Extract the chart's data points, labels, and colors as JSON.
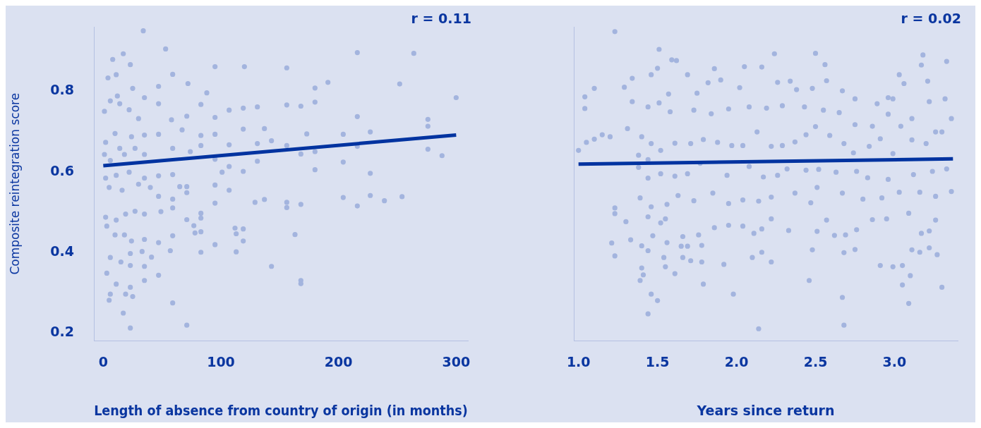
{
  "chart_data": [
    {
      "type": "scatter",
      "xlabel": "Length of absence from country of origin (in months)",
      "ylabel": "Composite reintegration score",
      "annotations": [
        "r = 0.11"
      ],
      "xlim": [
        -8,
        310
      ],
      "xticks": [
        0,
        100,
        200,
        300
      ],
      "ylim": [
        0.18,
        0.96
      ],
      "yticks": [
        0.2,
        0.4,
        0.6,
        0.8
      ],
      "series": [
        {
          "marker": "circle",
          "color": "#a3b4de",
          "x": [
            34,
            53,
            17,
            8,
            23,
            4,
            11,
            95,
            120,
            156,
            216,
            264,
            252,
            191,
            180,
            300,
            88,
            72,
            59,
            47,
            25,
            12,
            1,
            6,
            14,
            22,
            30,
            35,
            47,
            58,
            71,
            83,
            95,
            107,
            119,
            131,
            137,
            156,
            168,
            180,
            216,
            276,
            276,
            227,
            204,
            173,
            143,
            119,
            95,
            83,
            67,
            47,
            35,
            24,
            10,
            2,
            14,
            1,
            6,
            18,
            27,
            35,
            59,
            74,
            83,
            107,
            131,
            156,
            168,
            180,
            216,
            276,
            288,
            204,
            180,
            227,
            131,
            119,
            107,
            101,
            95,
            59,
            47,
            35,
            22,
            11,
            2,
            5,
            16,
            30,
            40,
            47,
            59,
            65,
            71,
            71,
            95,
            95,
            107,
            129,
            137,
            156,
            168,
            204,
            216,
            227,
            239,
            254,
            156,
            83,
            83,
            77,
            71,
            59,
            49,
            35,
            27,
            19,
            11,
            2,
            3,
            10,
            18,
            24,
            35,
            47,
            59,
            78,
            83,
            112,
            119,
            113,
            119,
            163,
            95,
            83,
            113,
            57,
            41,
            33,
            23,
            15,
            6,
            3,
            11,
            23,
            35,
            47,
            143,
            168,
            168,
            35,
            6,
            5,
            19,
            25,
            23,
            59,
            17,
            71,
            23
          ],
          "values": [
            0.95,
            0.905,
            0.893,
            0.879,
            0.866,
            0.833,
            0.841,
            0.861,
            0.861,
            0.858,
            0.896,
            0.894,
            0.818,
            0.822,
            0.808,
            0.784,
            0.796,
            0.819,
            0.842,
            0.812,
            0.807,
            0.788,
            0.75,
            0.776,
            0.769,
            0.754,
            0.732,
            0.784,
            0.769,
            0.729,
            0.738,
            0.767,
            0.735,
            0.753,
            0.758,
            0.761,
            0.707,
            0.766,
            0.763,
            0.773,
            0.737,
            0.73,
            0.713,
            0.699,
            0.693,
            0.694,
            0.677,
            0.706,
            0.693,
            0.69,
            0.704,
            0.693,
            0.691,
            0.687,
            0.695,
            0.673,
            0.658,
            0.643,
            0.628,
            0.643,
            0.658,
            0.643,
            0.658,
            0.65,
            0.665,
            0.667,
            0.67,
            0.665,
            0.644,
            0.65,
            0.663,
            0.656,
            0.64,
            0.624,
            0.605,
            0.596,
            0.626,
            0.601,
            0.613,
            0.599,
            0.631,
            0.593,
            0.59,
            0.584,
            0.599,
            0.591,
            0.584,
            0.561,
            0.554,
            0.569,
            0.561,
            0.539,
            0.532,
            0.563,
            0.563,
            0.548,
            0.567,
            0.522,
            0.554,
            0.524,
            0.531,
            0.524,
            0.519,
            0.536,
            0.515,
            0.541,
            0.528,
            0.538,
            0.511,
            0.497,
            0.485,
            0.466,
            0.481,
            0.51,
            0.501,
            0.495,
            0.502,
            0.495,
            0.48,
            0.487,
            0.465,
            0.443,
            0.443,
            0.428,
            0.432,
            0.424,
            0.441,
            0.448,
            0.451,
            0.46,
            0.458,
            0.446,
            0.428,
            0.444,
            0.419,
            0.4,
            0.401,
            0.404,
            0.388,
            0.402,
            0.397,
            0.376,
            0.387,
            0.348,
            0.321,
            0.367,
            0.365,
            0.343,
            0.365,
            0.33,
            0.322,
            0.33,
            0.296,
            0.281,
            0.296,
            0.29,
            0.313,
            0.274,
            0.249,
            0.219,
            0.212
          ]
        },
        {
          "type": "line",
          "color": "#0033a0",
          "x": [
            0,
            300
          ],
          "values": [
            0.615,
            0.691
          ]
        }
      ]
    },
    {
      "type": "scatter",
      "xlabel": "Years since return",
      "annotations": [
        "r = 0.02"
      ],
      "xlim": [
        0.97,
        3.4
      ],
      "xticks": [
        {
          "value": 1,
          "label": "1.0"
        },
        {
          "value": 1.5,
          "label": "1.5"
        },
        {
          "value": 2,
          "label": "2.0"
        },
        {
          "value": 2.5,
          "label": "2.5"
        },
        {
          "value": 3,
          "label": "3.0"
        }
      ],
      "ylim": [
        0.18,
        0.96
      ],
      "yticks": [
        0.2,
        0.4,
        0.6,
        0.8
      ],
      "tick_labels": "x",
      "series": [
        {
          "marker": "circle",
          "color": "#a3b4de",
          "x": [
            1.23,
            1.51,
            1.59,
            1.62,
            1.5,
            1.46,
            1.34,
            1.1,
            1.04,
            1.04,
            1.0,
            1.05,
            1.1,
            1.15,
            1.2,
            1.29,
            1.34,
            1.31,
            1.23,
            1.23,
            1.3,
            1.21,
            1.23,
            1.33,
            2.24,
            2.5,
            2.56,
            2.05,
            2.16,
            1.86,
            1.69,
            1.9,
            1.82,
            2.34,
            2.57,
            3.03,
            3.18,
            3.17,
            3.21,
            3.33,
            3.32,
            3.36,
            3.06,
            2.99,
            2.96,
            2.67,
            2.75,
            2.89,
            2.48,
            2.38,
            2.26,
            2.02,
            1.75,
            1.57,
            1.44,
            1.51,
            1.58,
            1.73,
            1.84,
            1.95,
            2.08,
            2.19,
            2.29,
            2.43,
            2.55,
            2.65,
            2.75,
            2.86,
            2.96,
            3.04,
            3.11,
            3.22,
            3.26,
            3.3,
            3.2,
            3.11,
            2.99,
            2.91,
            2.84,
            2.74,
            2.68,
            2.59,
            2.5,
            2.44,
            2.37,
            2.29,
            2.22,
            2.13,
            2.04,
            1.97,
            1.88,
            1.79,
            1.71,
            1.61,
            1.52,
            1.46,
            1.4,
            1.38,
            1.44,
            1.38,
            1.44,
            1.52,
            1.61,
            1.69,
            1.77,
            1.94,
            2.08,
            2.17,
            2.26,
            2.32,
            2.44,
            2.52,
            2.63,
            2.76,
            2.83,
            2.96,
            3.12,
            3.24,
            3.33,
            3.36,
            3.26,
            3.16,
            3.03,
            2.92,
            2.8,
            2.67,
            2.51,
            2.47,
            2.37,
            2.22,
            2.14,
            2.04,
            1.95,
            1.85,
            1.73,
            1.63,
            1.56,
            1.46,
            1.39,
            1.44,
            1.52,
            1.55,
            1.47,
            1.56,
            1.4,
            1.44,
            1.65,
            1.69,
            1.78,
            1.66,
            1.76,
            1.86,
            1.95,
            2.04,
            2.11,
            2.16,
            2.22,
            2.33,
            2.51,
            2.57,
            2.62,
            2.69,
            2.76,
            2.86,
            2.95,
            3.09,
            3.17,
            3.22,
            3.26,
            3.22,
            3.16,
            3.27,
            3.11,
            2.91,
            2.99,
            3.05,
            3.1,
            3.05,
            3.09,
            3.3,
            2.75,
            2.68,
            2.48,
            2.46,
            2.67,
            2.68,
            2.14,
            1.98,
            1.79,
            1.92,
            2.22,
            2.1,
            2.16,
            1.78,
            1.71,
            1.66,
            1.61,
            1.55,
            1.54,
            1.4,
            1.41,
            1.39,
            1.46,
            1.5,
            1.44
          ],
          "values": [
            0.948,
            0.904,
            0.878,
            0.876,
            0.857,
            0.841,
            0.832,
            0.807,
            0.786,
            0.757,
            0.653,
            0.673,
            0.681,
            0.692,
            0.687,
            0.81,
            0.774,
            0.707,
            0.51,
            0.496,
            0.476,
            0.423,
            0.391,
            0.431,
            0.893,
            0.894,
            0.866,
            0.861,
            0.86,
            0.856,
            0.841,
            0.828,
            0.821,
            0.825,
            0.826,
            0.841,
            0.89,
            0.865,
            0.825,
            0.874,
            0.781,
            0.732,
            0.819,
            0.781,
            0.784,
            0.801,
            0.781,
            0.769,
            0.807,
            0.804,
            0.822,
            0.809,
            0.795,
            0.793,
            0.761,
            0.771,
            0.749,
            0.753,
            0.744,
            0.756,
            0.761,
            0.758,
            0.764,
            0.761,
            0.753,
            0.747,
            0.717,
            0.713,
            0.743,
            0.713,
            0.732,
            0.774,
            0.699,
            0.699,
            0.67,
            0.679,
            0.645,
            0.682,
            0.663,
            0.647,
            0.67,
            0.69,
            0.712,
            0.692,
            0.674,
            0.665,
            0.663,
            0.699,
            0.665,
            0.665,
            0.673,
            0.68,
            0.67,
            0.671,
            0.653,
            0.67,
            0.687,
            0.641,
            0.63,
            0.611,
            0.584,
            0.595,
            0.589,
            0.595,
            0.621,
            0.591,
            0.613,
            0.587,
            0.591,
            0.607,
            0.604,
            0.606,
            0.599,
            0.601,
            0.585,
            0.581,
            0.593,
            0.601,
            0.607,
            0.551,
            0.539,
            0.549,
            0.549,
            0.535,
            0.532,
            0.547,
            0.561,
            0.523,
            0.547,
            0.537,
            0.527,
            0.53,
            0.521,
            0.547,
            0.528,
            0.541,
            0.519,
            0.513,
            0.535,
            0.488,
            0.473,
            0.483,
            0.441,
            0.424,
            0.416,
            0.404,
            0.415,
            0.415,
            0.417,
            0.439,
            0.443,
            0.461,
            0.467,
            0.465,
            0.447,
            0.458,
            0.483,
            0.454,
            0.452,
            0.48,
            0.442,
            0.443,
            0.456,
            0.481,
            0.483,
            0.497,
            0.447,
            0.453,
            0.48,
            0.411,
            0.4,
            0.394,
            0.406,
            0.367,
            0.364,
            0.367,
            0.342,
            0.319,
            0.273,
            0.313,
            0.407,
            0.399,
            0.406,
            0.33,
            0.288,
            0.219,
            0.21,
            0.296,
            0.321,
            0.37,
            0.376,
            0.387,
            0.4,
            0.376,
            0.379,
            0.387,
            0.347,
            0.364,
            0.387,
            0.361,
            0.344,
            0.33,
            0.296,
            0.28,
            0.247
          ]
        },
        {
          "type": "line",
          "color": "#0033a0",
          "x": [
            1.0,
            3.37
          ],
          "values": [
            0.619,
            0.632
          ]
        }
      ]
    }
  ]
}
